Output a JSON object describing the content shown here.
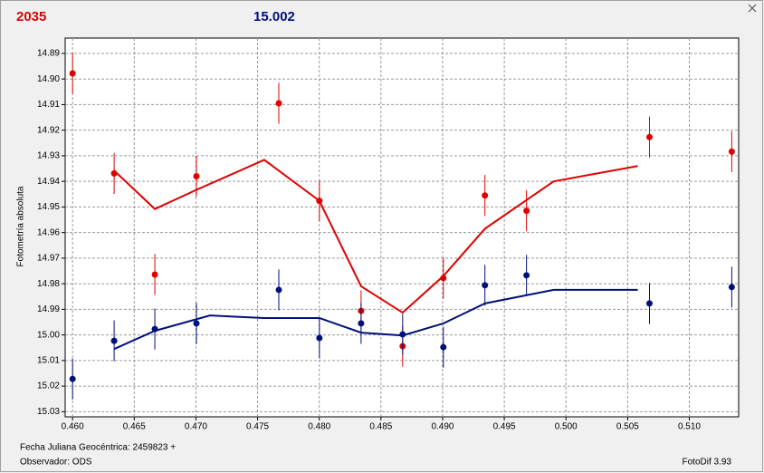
{
  "chart_data": {
    "type": "scatter",
    "header": {
      "left": "2035",
      "left_color": "#e00000",
      "right": "15.002",
      "right_color": "#00107a"
    },
    "ylabel": "Fotometría absoluta",
    "footer": {
      "date": "Fecha Juliana Geocéntrica: 2459823 +",
      "observer": "Observador: ODS",
      "software": "FotoDif 3.93"
    },
    "xlim": [
      0.4594,
      0.514
    ],
    "ylim": [
      15.032,
      14.884
    ],
    "grid": true,
    "xticks": [
      {
        "value": 0.46,
        "label": "0.460"
      },
      {
        "value": 0.465,
        "label": "0.465"
      },
      {
        "value": 0.47,
        "label": "0.470"
      },
      {
        "value": 0.475,
        "label": "0.475"
      },
      {
        "value": 0.48,
        "label": "0.480"
      },
      {
        "value": 0.485,
        "label": "0.485"
      },
      {
        "value": 0.49,
        "label": "0.490"
      },
      {
        "value": 0.495,
        "label": "0.495"
      },
      {
        "value": 0.5,
        "label": "0.500"
      },
      {
        "value": 0.505,
        "label": "0.505"
      },
      {
        "value": 0.51,
        "label": "0.510"
      }
    ],
    "yticks": [
      14.89,
      {
        "value": 14.9,
        "label": "14.90"
      },
      14.91,
      14.92,
      14.93,
      14.94,
      14.95,
      14.96,
      14.97,
      14.98,
      14.99,
      {
        "value": 15.0,
        "label": "15.00"
      },
      15.01,
      15.02,
      15.03
    ],
    "series": [
      {
        "style": "points",
        "color": "#e00000",
        "x": [
          0.46,
          0.46337,
          0.46667,
          0.47004,
          0.47672,
          0.48001,
          0.48339,
          0.48676,
          0.49006,
          0.49343,
          0.4968,
          0.50677,
          0.51344
        ],
        "values": [
          14.8978,
          14.9369,
          14.9764,
          14.938,
          14.9095,
          14.9476,
          14.9906,
          15.0044,
          14.9778,
          14.9455,
          14.9515,
          14.9227,
          14.9284
        ],
        "errors": [
          0.008,
          0.008,
          0.008,
          0.008,
          0.008,
          0.008,
          0.008,
          0.008,
          0.008,
          0.008,
          0.008,
          0.008,
          0.008
        ]
      },
      {
        "style": "points",
        "color": "#00107a",
        "x": [
          0.46,
          0.46337,
          0.46667,
          0.47004,
          0.47672,
          0.48001,
          0.48339,
          0.48676,
          0.49006,
          0.49343,
          0.4968,
          0.50677,
          0.51344
        ],
        "values": [
          15.0172,
          15.0023,
          14.9977,
          14.9955,
          14.9824,
          15.0012,
          14.9955,
          14.9998,
          15.0048,
          14.9806,
          14.9767,
          14.9877,
          14.9813
        ],
        "errors": [
          0.008,
          0.008,
          0.008,
          0.008,
          0.008,
          0.008,
          0.008,
          0.008,
          0.008,
          0.008,
          0.008,
          0.008,
          0.008
        ]
      },
      {
        "style": "line",
        "color": "#e00000",
        "x": [
          0.46337,
          0.46667,
          0.47004,
          0.47554,
          0.48001,
          0.48339,
          0.48676,
          0.49006,
          0.49343,
          0.499,
          0.50582
        ],
        "values": [
          14.9358,
          14.9508,
          14.9433,
          14.9316,
          14.9476,
          14.981,
          14.9913,
          14.977,
          14.9585,
          14.94,
          14.934
        ]
      },
      {
        "style": "line",
        "color": "#00107a",
        "x": [
          0.46337,
          0.46667,
          0.47114,
          0.47554,
          0.48001,
          0.48339,
          0.48676,
          0.49006,
          0.49343,
          0.499,
          0.50582
        ],
        "values": [
          15.0055,
          14.9984,
          14.9924,
          14.9934,
          14.9934,
          14.9991,
          15.0002,
          14.9955,
          14.9877,
          14.9824,
          14.9824
        ]
      }
    ]
  }
}
